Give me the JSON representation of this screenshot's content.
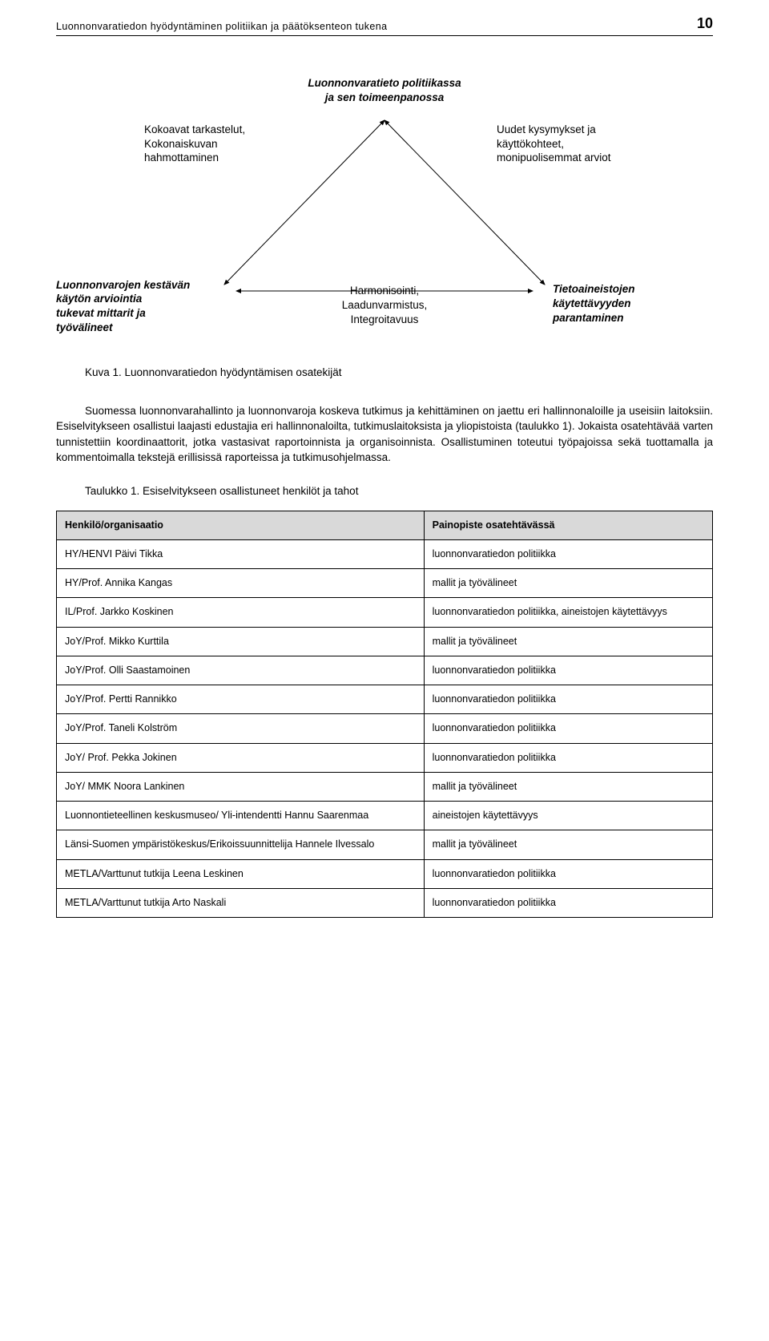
{
  "page": {
    "number": "10",
    "header": "Luonnonvaratiedon hyödyntäminen politiikan ja päätöksenteon tukena"
  },
  "diagram": {
    "top_title_l1": "Luonnonvaratieto politiikassa",
    "top_title_l2": "ja sen toimeenpanossa",
    "left_l1": "Kokoavat tarkastelut,",
    "left_l2": "Kokonaiskuvan",
    "left_l3": "hahmottaminen",
    "right_l1": "Uudet kysymykset ja",
    "right_l2": "käyttökohteet,",
    "right_l3": "monipuolisemmat arviot",
    "bl_l1": "Luonnonvarojen kestävän",
    "bl_l2": "käytön arviointia",
    "bl_l3": "tukevat  mittarit ja",
    "bl_l4": "työvälineet",
    "bm_l1": "Harmonisointi,",
    "bm_l2": "Laadunvarmistus,",
    "bm_l3": "Integroitavuus",
    "br_l1": "Tietoaineistojen",
    "br_l2": "käytettävyyden",
    "br_l3": "parantaminen",
    "triangle_stroke": "#000000",
    "triangle_stroke_width": 1
  },
  "caption": "Kuva 1. Luonnonvaratiedon hyödyntämisen osatekijät",
  "para1": "Suomessa luonnonvarahallinto ja luonnonvaroja koskeva tutkimus ja kehittäminen on jaettu eri hallinnonaloille ja useisiin laitoksiin. Esiselvitykseen osallistui laajasti edustajia eri hallinnonaloilta, tutkimuslaitoksista ja yliopistoista (taulukko 1). Jokaista osatehtävää varten tunnistettiin koordinaattorit, jotka vastasivat raportoinnista ja organisoinnista. Osallistuminen toteutui työpajoissa sekä tuottamalla ja kommentoimalla tekstejä erillisissä raporteissa ja tutkimusohjelmassa.",
  "table_title": "Taulukko 1. Esiselvitykseen osallistuneet henkilöt ja tahot",
  "table": {
    "col1": "Henkilö/organisaatio",
    "col2": "Painopiste osatehtävässä",
    "rows": [
      [
        "HY/HENVI Päivi Tikka",
        "luonnonvaratiedon politiikka"
      ],
      [
        "HY/Prof. Annika Kangas",
        "mallit ja työvälineet"
      ],
      [
        "IL/Prof. Jarkko Koskinen",
        "luonnonvaratiedon politiikka, aineistojen käytettävyys"
      ],
      [
        "JoY/Prof. Mikko Kurttila",
        "mallit ja työvälineet"
      ],
      [
        "JoY/Prof. Olli Saastamoinen",
        "luonnonvaratiedon politiikka"
      ],
      [
        "JoY/Prof. Pertti Rannikko",
        "luonnonvaratiedon politiikka"
      ],
      [
        "JoY/Prof. Taneli Kolström",
        "luonnonvaratiedon politiikka"
      ],
      [
        "JoY/ Prof. Pekka Jokinen",
        "luonnonvaratiedon politiikka"
      ],
      [
        "JoY/ MMK Noora Lankinen",
        "mallit ja työvälineet"
      ],
      [
        "Luonnontieteellinen keskusmuseo/ Yli-intendentti Hannu Saarenmaa",
        "aineistojen käytettävyys"
      ],
      [
        "Länsi-Suomen ympäristökeskus/Erikoissuunnittelija Hannele Ilvessalo",
        "mallit ja työvälineet"
      ],
      [
        "METLA/Varttunut tutkija Leena Leskinen",
        "luonnonvaratiedon politiikka"
      ],
      [
        "METLA/Varttunut tutkija Arto Naskali",
        "luonnonvaratiedon politiikka"
      ]
    ]
  }
}
